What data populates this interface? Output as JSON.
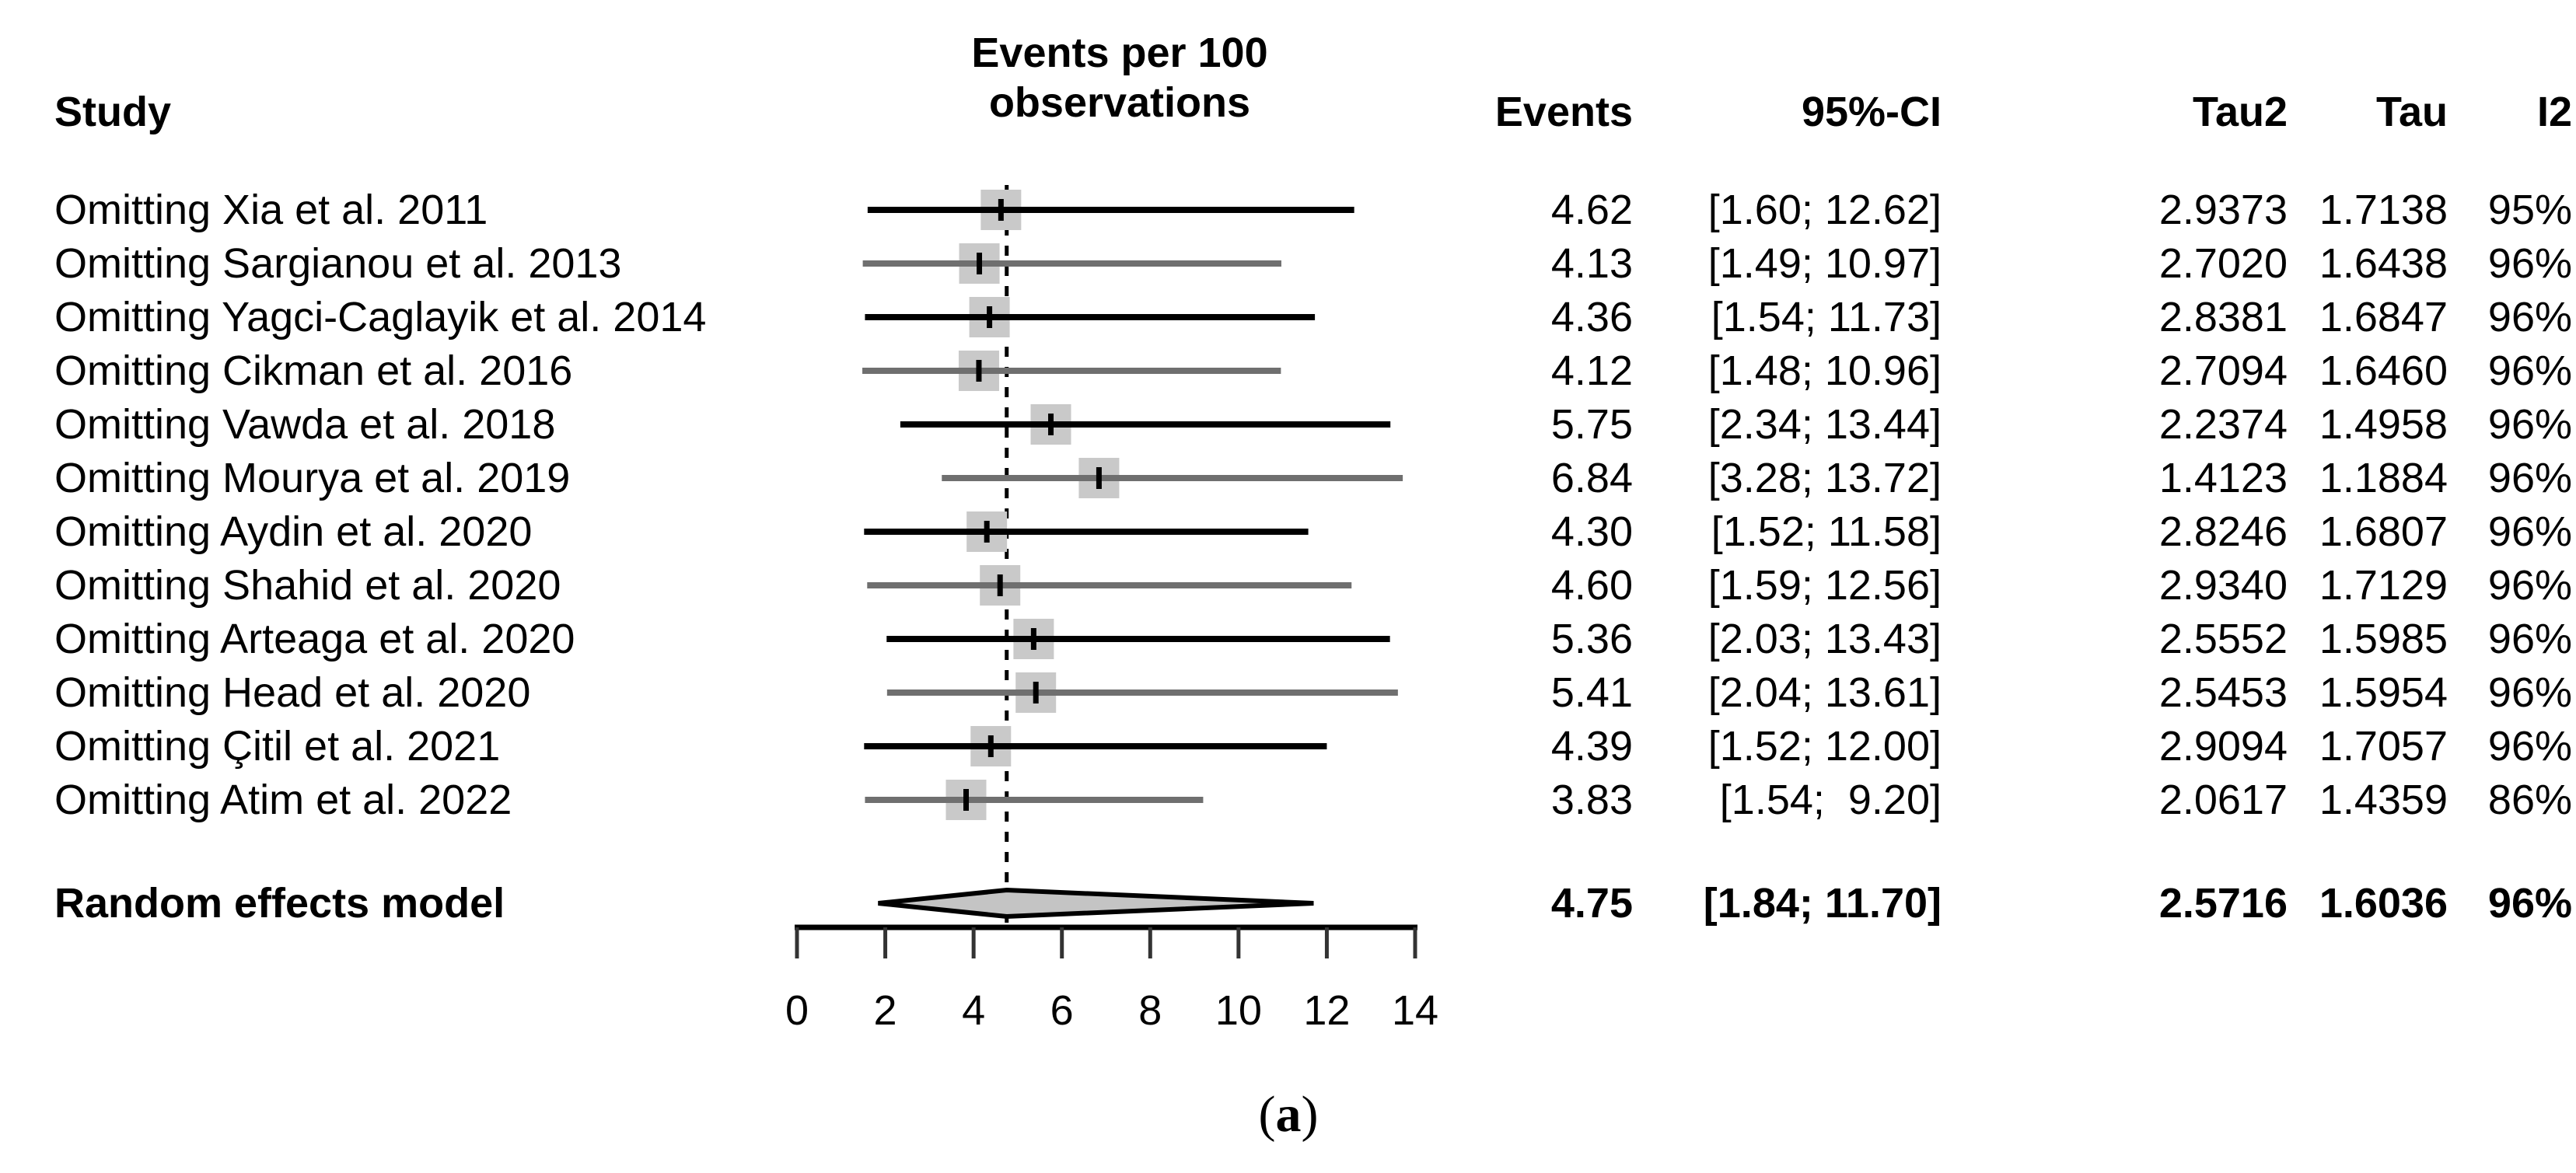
{
  "headers": {
    "study": "Study",
    "plot": "Events per 100\nobservations",
    "events": "Events",
    "ci": "95%-CI",
    "tau2": "Tau2",
    "tau": "Tau",
    "i2": "I2"
  },
  "caption": {
    "open": "(",
    "letter": "a",
    "close": ")"
  },
  "colors": {
    "square_fill": "#c9c9c9",
    "diamond_fill": "#c4c4c4",
    "ci_line_black": "#000000",
    "ci_line_gray": "#6f6f6f",
    "marker_tick": "#000000",
    "axis": "#000000",
    "reference_line": "#000000"
  },
  "chart_data": {
    "type": "forest",
    "title": "Events per 100 observations",
    "x_axis": {
      "min": 0,
      "max": 14,
      "ticks": [
        0,
        2,
        4,
        6,
        8,
        10,
        12,
        14
      ]
    },
    "reference_line_value": 4.75,
    "legend_position": "none",
    "grid": false,
    "studies": [
      {
        "label": "Omitting Xia et al. 2011",
        "events": "4.62",
        "ci": "[1.60; 12.62]",
        "tau2": "2.9373",
        "tau": "1.7138",
        "i2": "95%",
        "est": 4.62,
        "lo": 1.6,
        "hi": 12.62
      },
      {
        "label": "Omitting Sargianou et al. 2013",
        "events": "4.13",
        "ci": "[1.49; 10.97]",
        "tau2": "2.7020",
        "tau": "1.6438",
        "i2": "96%",
        "est": 4.13,
        "lo": 1.49,
        "hi": 10.97
      },
      {
        "label": "Omitting Yagci-Caglayik et al. 2014",
        "events": "4.36",
        "ci": "[1.54; 11.73]",
        "tau2": "2.8381",
        "tau": "1.6847",
        "i2": "96%",
        "est": 4.36,
        "lo": 1.54,
        "hi": 11.73
      },
      {
        "label": "Omitting Cikman et al. 2016",
        "events": "4.12",
        "ci": "[1.48; 10.96]",
        "tau2": "2.7094",
        "tau": "1.6460",
        "i2": "96%",
        "est": 4.12,
        "lo": 1.48,
        "hi": 10.96
      },
      {
        "label": "Omitting Vawda et al. 2018",
        "events": "5.75",
        "ci": "[2.34; 13.44]",
        "tau2": "2.2374",
        "tau": "1.4958",
        "i2": "96%",
        "est": 5.75,
        "lo": 2.34,
        "hi": 13.44
      },
      {
        "label": "Omitting Mourya et al. 2019",
        "events": "6.84",
        "ci": "[3.28; 13.72]",
        "tau2": "1.4123",
        "tau": "1.1884",
        "i2": "96%",
        "est": 6.84,
        "lo": 3.28,
        "hi": 13.72
      },
      {
        "label": "Omitting Aydin et al. 2020",
        "events": "4.30",
        "ci": "[1.52; 11.58]",
        "tau2": "2.8246",
        "tau": "1.6807",
        "i2": "96%",
        "est": 4.3,
        "lo": 1.52,
        "hi": 11.58
      },
      {
        "label": "Omitting Shahid et al. 2020",
        "events": "4.60",
        "ci": "[1.59; 12.56]",
        "tau2": "2.9340",
        "tau": "1.7129",
        "i2": "96%",
        "est": 4.6,
        "lo": 1.59,
        "hi": 12.56
      },
      {
        "label": "Omitting Arteaga et al. 2020",
        "events": "5.36",
        "ci": "[2.03; 13.43]",
        "tau2": "2.5552",
        "tau": "1.5985",
        "i2": "96%",
        "est": 5.36,
        "lo": 2.03,
        "hi": 13.43
      },
      {
        "label": "Omitting Head et al. 2020",
        "events": "5.41",
        "ci": "[2.04; 13.61]",
        "tau2": "2.5453",
        "tau": "1.5954",
        "i2": "96%",
        "est": 5.41,
        "lo": 2.04,
        "hi": 13.61
      },
      {
        "label": "Omitting Çitil et al. 2021",
        "events": "4.39",
        "ci": "[1.52; 12.00]",
        "tau2": "2.9094",
        "tau": "1.7057",
        "i2": "96%",
        "est": 4.39,
        "lo": 1.52,
        "hi": 12.0
      },
      {
        "label": "Omitting Atim et al. 2022",
        "events": "3.83",
        "ci": "[1.54;  9.20]",
        "tau2": "2.0617",
        "tau": "1.4359",
        "i2": "86%",
        "est": 3.83,
        "lo": 1.54,
        "hi": 9.2
      }
    ],
    "summary": {
      "label": "Random effects model",
      "events": "4.75",
      "ci": "[1.84; 11.70]",
      "tau2": "2.5716",
      "tau": "1.6036",
      "i2": "96%",
      "est": 4.75,
      "lo": 1.84,
      "hi": 11.7
    }
  }
}
